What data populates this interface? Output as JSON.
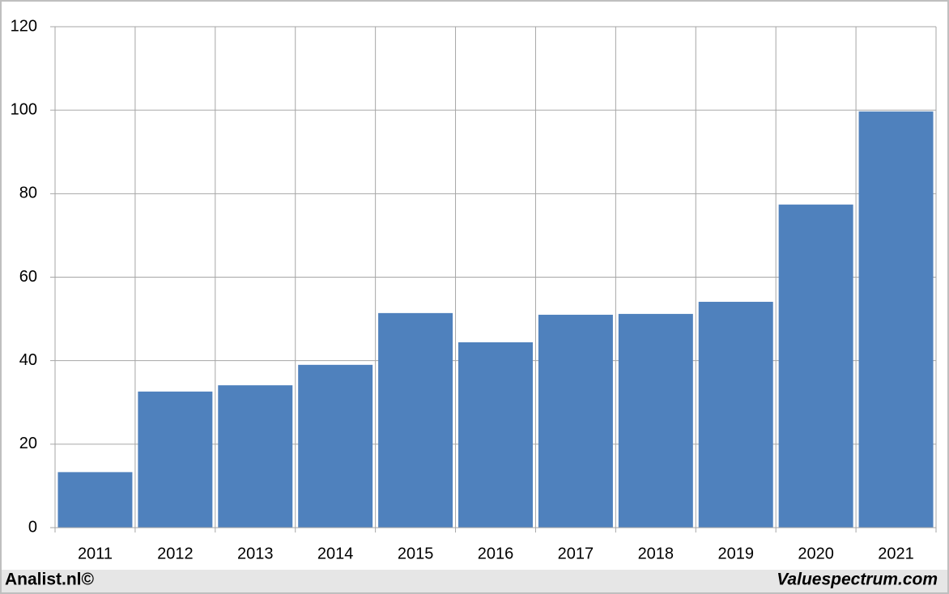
{
  "chart_data": {
    "type": "bar",
    "categories": [
      "2011",
      "2012",
      "2013",
      "2014",
      "2015",
      "2016",
      "2017",
      "2018",
      "2019",
      "2020",
      "2021"
    ],
    "values": [
      13.3,
      32.6,
      34.1,
      39.0,
      51.4,
      44.4,
      51.0,
      51.2,
      54.1,
      77.4,
      99.7
    ],
    "color": "#4f81bd",
    "ylim": [
      0,
      120
    ],
    "yticks": [
      0,
      20,
      40,
      60,
      80,
      100,
      120
    ],
    "grid": true,
    "footer_left": "Analist.nl©",
    "footer_right": "Valuespectrum.com"
  }
}
